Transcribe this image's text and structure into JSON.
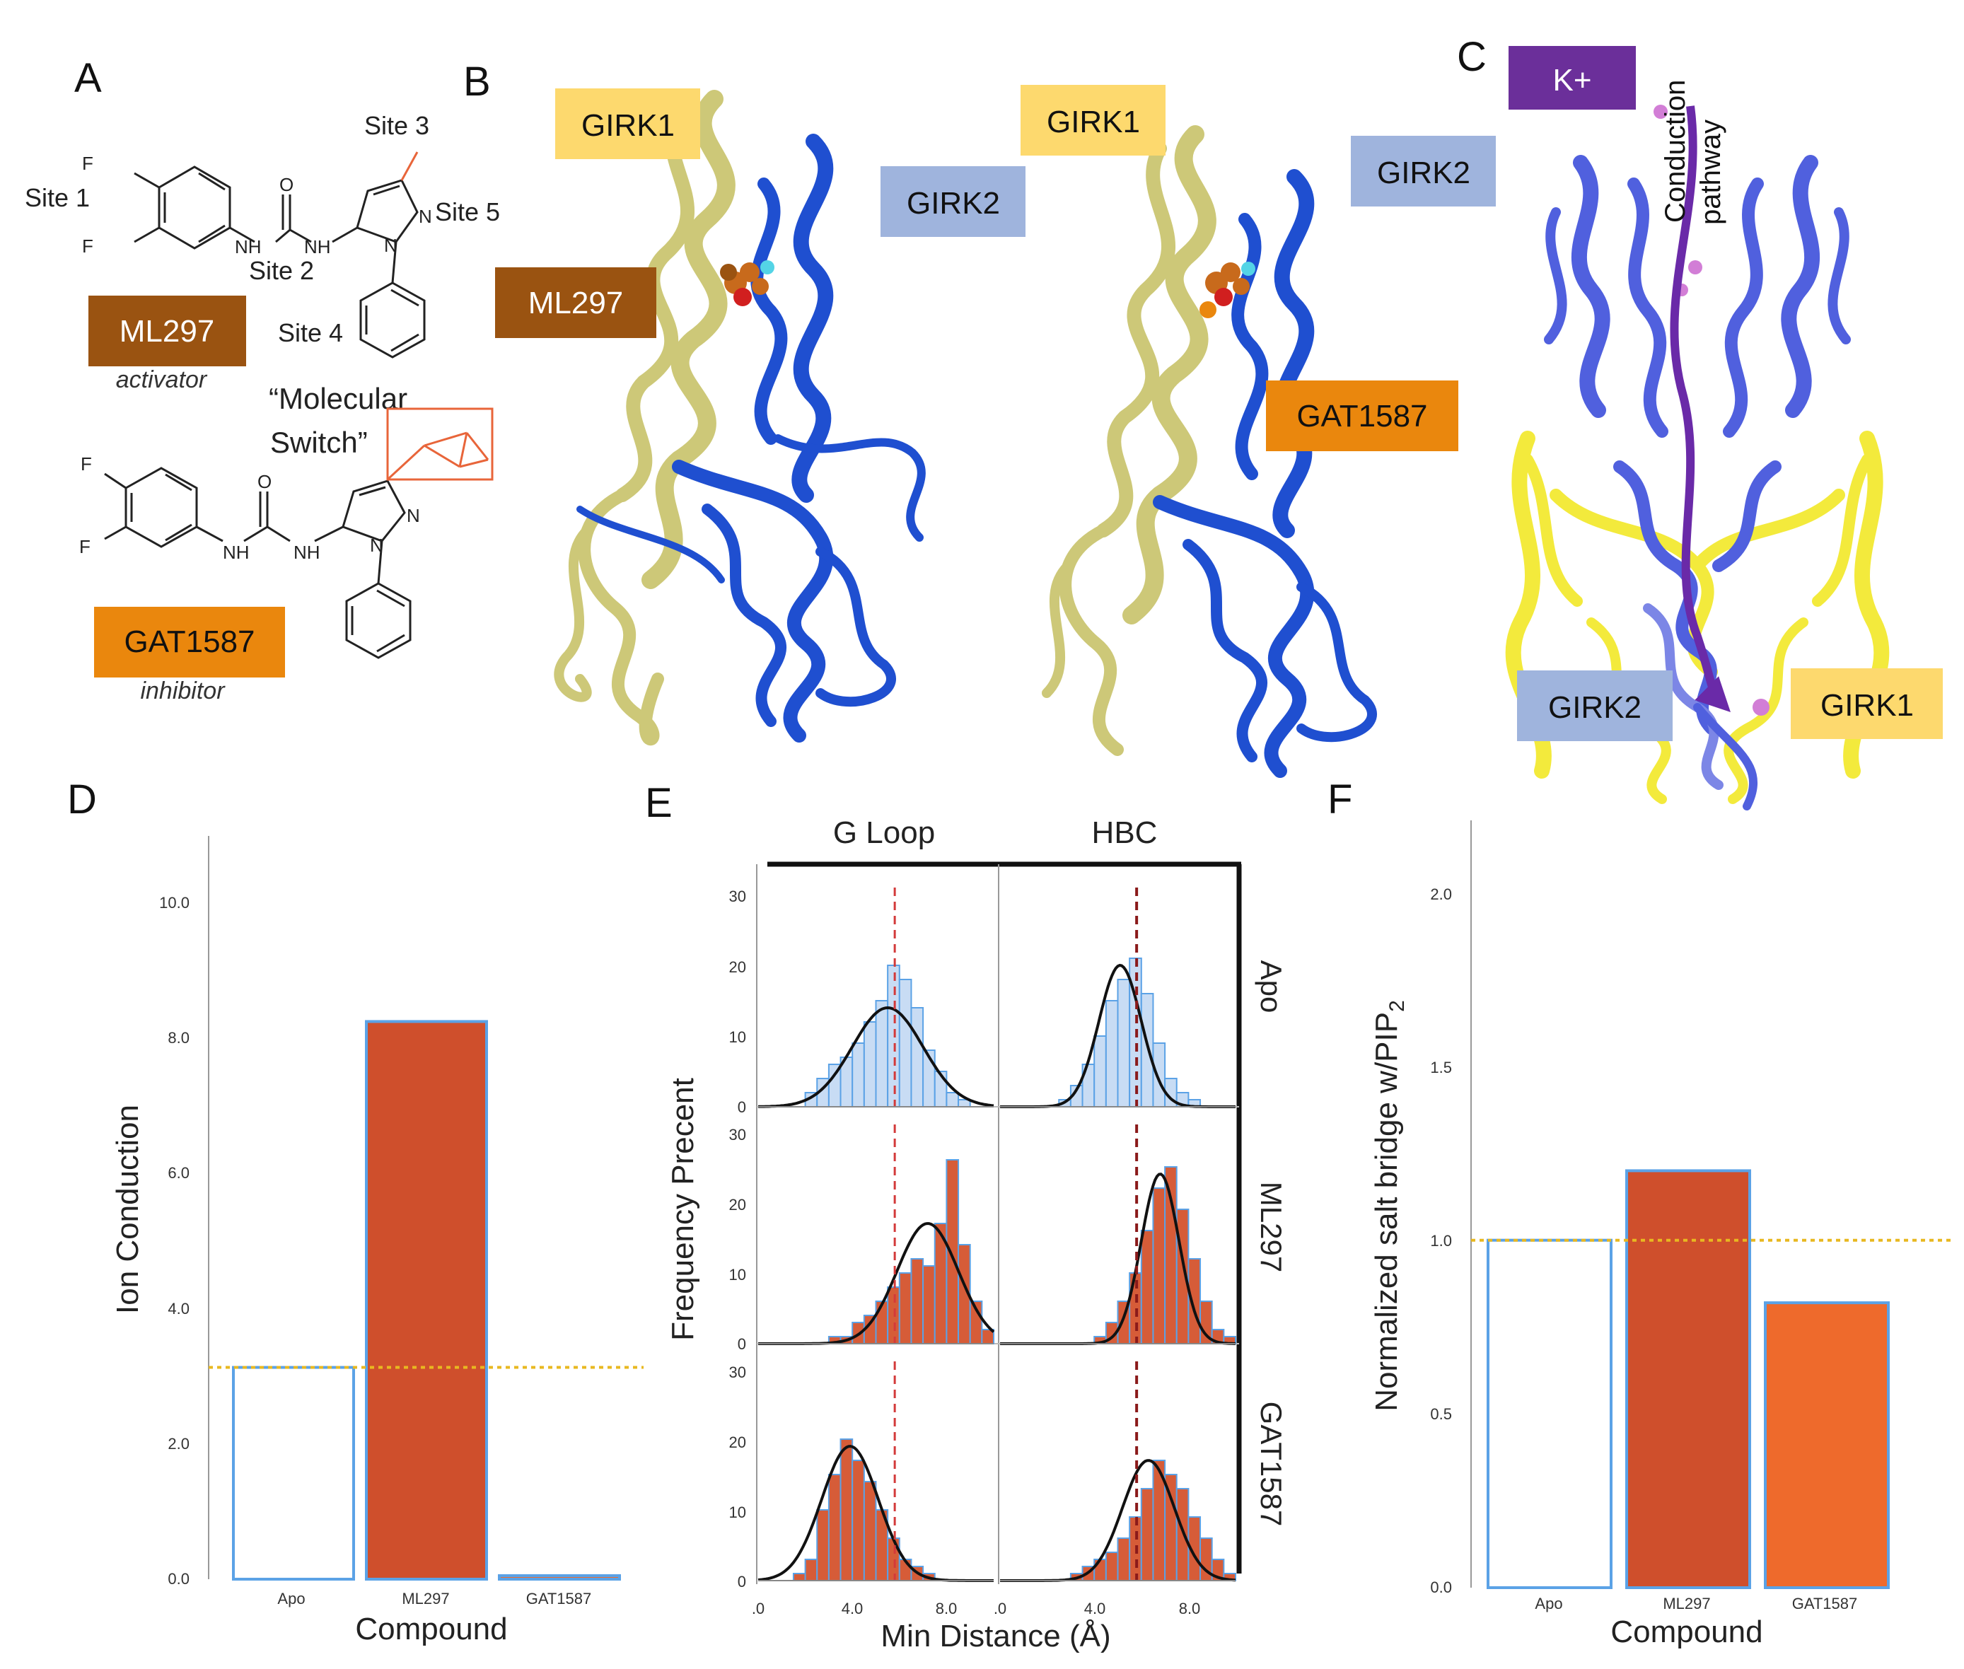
{
  "panels": {
    "A": "A",
    "B": "B",
    "C": "C",
    "D": "D",
    "E": "E",
    "F": "F"
  },
  "panel_a": {
    "sites": [
      "Site 1",
      "Site 2",
      "Site 3",
      "Site 4",
      "Site 5"
    ],
    "atoms": {
      "F": "F",
      "NH": "NH",
      "O": "O",
      "N": "N"
    },
    "molecular_switch": "“Molecular Switch”",
    "molecular_switch_line1": "“Molecular",
    "molecular_switch_line2": "Switch”",
    "ml297": {
      "name": "ML297",
      "role": "activator"
    },
    "gat1587": {
      "name": "GAT1587",
      "role": "inhibitor"
    }
  },
  "panel_b": {
    "labels": [
      "GIRK1",
      "GIRK2",
      "ML297",
      "GIRK1",
      "GIRK2",
      "GAT1587"
    ]
  },
  "panel_c": {
    "ion": "K+",
    "pathway_line1": "Conduction",
    "pathway_line2": "pathway",
    "girk2": "GIRK2",
    "girk1": "GIRK1"
  },
  "colors": {
    "girk1_label_bg": "#fdd96e",
    "girk2_label_bg": "#9fb4dd",
    "ml297_label_bg": "#9a5311",
    "gat1587_label_bg": "#ea870d",
    "k_label_bg": "#6b2f9a",
    "girk1_chain": "#cdc878",
    "girk2_chain": "#1f4fd0",
    "bar_ml297": "#cf4f2c",
    "bar_gat1587": "#ee6a2c",
    "bar_outline": "#5ba2e6",
    "reference_line": "#e8b820",
    "pathway_arrow": "#6a2aa8",
    "hist_apo": "#c8dcf4",
    "hist_ligand": "#d65c38"
  },
  "chart_data": [
    {
      "panel": "D",
      "type": "bar",
      "categories": [
        "Apo",
        "ML297",
        "GAT1587"
      ],
      "values": [
        3.0,
        7.9,
        0.05
      ],
      "xlabel": "Compound",
      "ylabel": "Ion Conduction",
      "ylim": [
        0,
        11
      ],
      "yticks": [
        "0.0",
        "2.0",
        "4.0",
        "6.0",
        "8.0",
        "10.0"
      ],
      "reference_line": 3.0,
      "grid": false
    },
    {
      "panel": "E",
      "type": "histogram",
      "xlabel": "Min Distance (Å)",
      "ylabel": "Frequency Precent",
      "columns": [
        "G Loop",
        "HBC"
      ],
      "rows": [
        "Apo",
        "ML297",
        "GAT1587"
      ],
      "xlim": [
        0,
        10
      ],
      "ylim": [
        0,
        30
      ],
      "yticks": [
        "0",
        "10",
        "20",
        "30"
      ],
      "xticks": [
        ".0",
        "4.0",
        "8.0"
      ],
      "xticks_hbc": [
        ".0",
        "4.0",
        "8.0"
      ],
      "bin_width": 0.5,
      "reference_line": {
        "G Loop": 5.8,
        "HBC": 5.8
      },
      "histograms": {
        "G Loop": {
          "Apo": {
            "bin_start": 2.0,
            "values": [
              2,
              4,
              6,
              7,
              9,
              12,
              15,
              20,
              18,
              14,
              8,
              5,
              2,
              1
            ],
            "mean": 5.5,
            "sd": 1.5,
            "peak": 14
          },
          "ML297": {
            "bin_start": 3.0,
            "values": [
              1,
              1,
              3,
              4,
              6,
              8,
              10,
              12,
              11,
              17,
              26,
              14,
              6,
              2
            ],
            "mean": 7.2,
            "sd": 1.3,
            "peak": 17
          },
          "GAT1587": {
            "bin_start": 1.5,
            "values": [
              1,
              3,
              10,
              15,
              20,
              17,
              14,
              10,
              6,
              3,
              2,
              1
            ],
            "mean": 3.9,
            "sd": 1.2,
            "peak": 19
          }
        },
        "HBC": {
          "Apo": {
            "bin_start": 2.5,
            "values": [
              1,
              3,
              6,
              10,
              15,
              18,
              21,
              16,
              9,
              4,
              2,
              1
            ],
            "mean": 5.1,
            "sd": 0.9,
            "peak": 20
          },
          "ML297": {
            "bin_start": 4.0,
            "values": [
              1,
              3,
              6,
              10,
              16,
              22,
              25,
              19,
              12,
              6,
              2,
              1
            ],
            "mean": 6.8,
            "sd": 0.8,
            "peak": 24
          },
          "GAT1587": {
            "bin_start": 3.0,
            "values": [
              1,
              2,
              3,
              4,
              6,
              9,
              13,
              17,
              15,
              13,
              9,
              6,
              3,
              1
            ],
            "mean": 6.3,
            "sd": 1.1,
            "peak": 17
          }
        }
      }
    },
    {
      "panel": "F",
      "type": "bar",
      "categories": [
        "Apo",
        "ML297",
        "GAT1587"
      ],
      "values": [
        1.0,
        1.2,
        0.82
      ],
      "xlabel": "Compound",
      "ylabel": "Normalized salt bridge w/PIP",
      "ylabel_sub": "2",
      "ylim": [
        0,
        2.3
      ],
      "yticks": [
        "0.0",
        "0.5",
        "1.0",
        "1.5",
        "2.0"
      ],
      "reference_line": 1.0,
      "grid": false
    }
  ]
}
